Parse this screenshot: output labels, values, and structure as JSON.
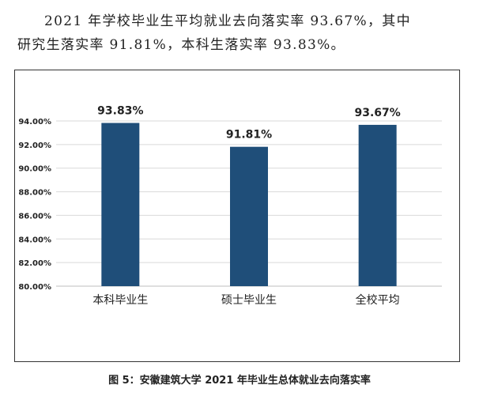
{
  "intro": {
    "line1": "2021 年学校毕业生平均就业去向落实率 93.67%，其中",
    "line2": "研究生落实率 91.81%，本科生落实率 93.83%。"
  },
  "caption": "图 5：安徽建筑大学 2021 年毕业生总体就业去向落实率",
  "colors": {
    "bar": "#1f4e79",
    "grid": "#d9d9d9",
    "axis": "#bfbfbf",
    "text": "#222222"
  },
  "chart_data": {
    "type": "bar",
    "categories": [
      "本科毕业生",
      "硕士毕业生",
      "全校平均"
    ],
    "values": [
      93.83,
      91.81,
      93.67
    ],
    "data_labels": [
      "93.83%",
      "91.81%",
      "93.67%"
    ],
    "ylim": [
      80,
      94
    ],
    "yticks": [
      "80.00%",
      "82.00%",
      "84.00%",
      "86.00%",
      "88.00%",
      "90.00%",
      "92.00%",
      "94.00%"
    ],
    "ytick_values": [
      80,
      82,
      84,
      86,
      88,
      90,
      92,
      94
    ],
    "grid": true,
    "title": "",
    "xlabel": "",
    "ylabel": ""
  }
}
